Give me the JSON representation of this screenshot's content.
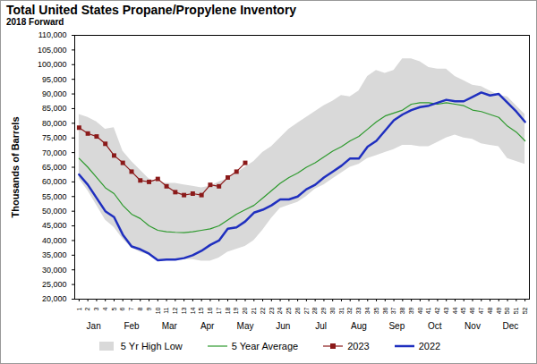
{
  "chart_data": {
    "type": "line",
    "title": "Total United States Propane/Propylene Inventory",
    "subtitle": "2018 Forward",
    "y_label": "Thousands of Barrels",
    "x": [
      1,
      2,
      3,
      4,
      5,
      6,
      7,
      8,
      9,
      10,
      11,
      12,
      13,
      14,
      15,
      16,
      17,
      18,
      19,
      20,
      21,
      22,
      23,
      24,
      25,
      26,
      27,
      28,
      29,
      30,
      31,
      32,
      33,
      34,
      35,
      36,
      37,
      38,
      39,
      40,
      41,
      42,
      43,
      44,
      45,
      46,
      47,
      48,
      49,
      50,
      51,
      52
    ],
    "xlim": [
      0.5,
      52.5
    ],
    "xticks": [
      1,
      2,
      3,
      4,
      5,
      6,
      7,
      8,
      9,
      10,
      11,
      12,
      13,
      14,
      15,
      16,
      17,
      18,
      19,
      20,
      21,
      22,
      23,
      24,
      25,
      26,
      27,
      28,
      29,
      30,
      31,
      32,
      33,
      34,
      35,
      36,
      37,
      38,
      39,
      40,
      41,
      42,
      43,
      44,
      45,
      46,
      47,
      48,
      49,
      50,
      51,
      52
    ],
    "month_labels": [
      "Jan",
      "Feb",
      "Mar",
      "Apr",
      "May",
      "Jun",
      "Jul",
      "Aug",
      "Sep",
      "Oct",
      "Nov",
      "Dec"
    ],
    "ylim": [
      20000,
      110000
    ],
    "yticks": [
      {
        "value": 20000,
        "label": "20,000"
      },
      {
        "value": 25000,
        "label": "25,000"
      },
      {
        "value": 30000,
        "label": "30,000"
      },
      {
        "value": 35000,
        "label": "35,000"
      },
      {
        "value": 40000,
        "label": "40,000"
      },
      {
        "value": 45000,
        "label": "45,000"
      },
      {
        "value": 50000,
        "label": "50,000"
      },
      {
        "value": 55000,
        "label": "55,000"
      },
      {
        "value": 60000,
        "label": "60,000"
      },
      {
        "value": 65000,
        "label": "65,000"
      },
      {
        "value": 70000,
        "label": "70,000"
      },
      {
        "value": 75000,
        "label": "75,000"
      },
      {
        "value": 80000,
        "label": "80,000"
      },
      {
        "value": 85000,
        "label": "85,000"
      },
      {
        "value": 90000,
        "label": "90,000"
      },
      {
        "value": 95000,
        "label": "95,000"
      },
      {
        "value": 100000,
        "label": "100,000"
      },
      {
        "value": 105000,
        "label": "105,000"
      },
      {
        "value": 110000,
        "label": "110,000"
      }
    ],
    "grid": false,
    "legend": "bottom",
    "series": [
      {
        "name": "5 Yr High Low",
        "type": "area",
        "color": "#d9d9d9",
        "high": [
          83000,
          82000,
          80500,
          78000,
          78500,
          70500,
          67000,
          64000,
          61000,
          60000,
          59500,
          59500,
          59000,
          58500,
          58000,
          58500,
          60000,
          61000,
          63000,
          65000,
          67000,
          70000,
          72000,
          75000,
          78000,
          80000,
          82000,
          84000,
          86000,
          87500,
          89500,
          89000,
          91000,
          96000,
          98000,
          97000,
          98000,
          102000,
          102000,
          101000,
          99000,
          98500,
          98500,
          96000,
          94500,
          93000,
          92500,
          91000,
          89500,
          89000,
          86000,
          83000
        ],
        "low": [
          61000,
          57000,
          52000,
          47000,
          44500,
          40500,
          37500,
          36000,
          35000,
          33500,
          33500,
          33500,
          33500,
          33500,
          33000,
          33000,
          34000,
          36000,
          37000,
          38000,
          40000,
          43500,
          47500,
          51000,
          52000,
          53000,
          55000,
          57500,
          59000,
          61000,
          63000,
          65000,
          66000,
          68000,
          69000,
          70000,
          71000,
          72500,
          72500,
          72000,
          72000,
          73500,
          75000,
          76000,
          75000,
          74500,
          73000,
          72500,
          72000,
          68000,
          67000,
          66000
        ]
      },
      {
        "name": "5 Year Average",
        "type": "line",
        "color": "#2e9a2e",
        "line_style": "solid",
        "values": [
          68000,
          65000,
          61500,
          58000,
          56000,
          52000,
          49000,
          47500,
          45000,
          43500,
          43000,
          42800,
          42700,
          43000,
          43500,
          44000,
          45000,
          47000,
          49000,
          50500,
          52000,
          54500,
          57000,
          59500,
          61500,
          63000,
          65000,
          66500,
          68500,
          70500,
          72000,
          74000,
          75500,
          78000,
          80500,
          82500,
          83500,
          84500,
          86500,
          87000,
          87000,
          86500,
          87000,
          86500,
          86000,
          84500,
          84000,
          83000,
          82000,
          79000,
          77000,
          74000
        ]
      },
      {
        "name": "2023",
        "type": "line",
        "color": "#8b1a1a",
        "line_style": "solid",
        "marker": "square",
        "values": [
          78500,
          76500,
          75500,
          73000,
          69000,
          66500,
          63500,
          60500,
          60000,
          61000,
          58500,
          56500,
          55500,
          56000,
          55500,
          59000,
          58500,
          61500,
          63500,
          66500,
          null,
          null,
          null,
          null,
          null,
          null,
          null,
          null,
          null,
          null,
          null,
          null,
          null,
          null,
          null,
          null,
          null,
          null,
          null,
          null,
          null,
          null,
          null,
          null,
          null,
          null,
          null,
          null,
          null,
          null,
          null,
          null
        ]
      },
      {
        "name": "2022",
        "type": "line",
        "color": "#1f2fbf",
        "line_style": "thick",
        "values": [
          62500,
          59000,
          54500,
          50000,
          48000,
          42000,
          38000,
          37000,
          35500,
          33300,
          33500,
          33500,
          34000,
          35000,
          36500,
          38500,
          40000,
          44000,
          44500,
          46500,
          49500,
          50500,
          52000,
          54000,
          54000,
          55000,
          57500,
          59000,
          61500,
          63500,
          65500,
          68000,
          68000,
          72000,
          74000,
          77500,
          81000,
          83000,
          84500,
          85500,
          86000,
          87000,
          88000,
          87500,
          87500,
          89000,
          90500,
          89500,
          90000,
          87000,
          84000,
          80500
        ]
      }
    ]
  }
}
